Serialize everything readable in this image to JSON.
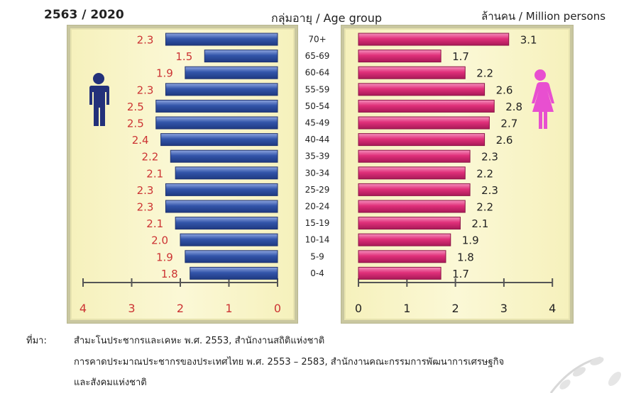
{
  "header": {
    "year": "2563 / 2020",
    "age_group": "กลุ่มอายุ / Age group",
    "unit": "ล้านคน / Million persons"
  },
  "colors": {
    "male_bar": "#3355aa",
    "female_bar": "#e0307a",
    "male_text": "#cc3333",
    "panel_bg": "#f8f4c8"
  },
  "icons": {
    "male": "male-figure-icon",
    "female": "female-figure-icon"
  },
  "chart_data": {
    "type": "bar",
    "categories": [
      "70+",
      "65-69",
      "60-64",
      "55-59",
      "50-54",
      "45-49",
      "40-44",
      "35-39",
      "30-34",
      "25-29",
      "20-24",
      "15-19",
      "10-14",
      "5-9",
      "0-4"
    ],
    "series": [
      {
        "values": [
          2.3,
          1.5,
          1.9,
          2.3,
          2.5,
          2.5,
          2.4,
          2.2,
          2.1,
          2.3,
          2.3,
          2.1,
          2.0,
          1.9,
          1.8
        ],
        "labels": [
          "2.3",
          "1.5",
          "1.9",
          "2.3",
          "2.5",
          "2.5",
          "2.4",
          "2.2",
          "2.1",
          "2.3",
          "2.3",
          "2.1",
          "2.0",
          "1.9",
          "1.8"
        ]
      },
      {
        "values": [
          3.1,
          1.7,
          2.2,
          2.6,
          2.8,
          2.7,
          2.6,
          2.3,
          2.2,
          2.3,
          2.2,
          2.1,
          1.9,
          1.8,
          1.7
        ],
        "labels": [
          "3.1",
          "1.7",
          "2.2",
          "2.6",
          "2.8",
          "2.7",
          "2.6",
          "2.3",
          "2.2",
          "2.3",
          "2.2",
          "2.1",
          "1.9",
          "1.8",
          "1.7"
        ]
      }
    ],
    "xlim": [
      0,
      4
    ],
    "male_ticks": [
      "4",
      "3",
      "2",
      "1",
      "0"
    ],
    "female_ticks": [
      "0",
      "1",
      "2",
      "3",
      "4"
    ],
    "grid": false
  },
  "source": {
    "label": "ที่มา:",
    "line1": "สำมะโนประชากรและเคหะ พ.ศ. 2553, สำนักงานสถิติแห่งชาติ",
    "line2": "การคาดประมาณประชากรของประเทศไทย พ.ศ. 2553 – 2583,  สำนักงานคณะกรรมการพัฒนาการเศรษฐกิจ",
    "line3": "และสังคมแห่งชาติ"
  }
}
